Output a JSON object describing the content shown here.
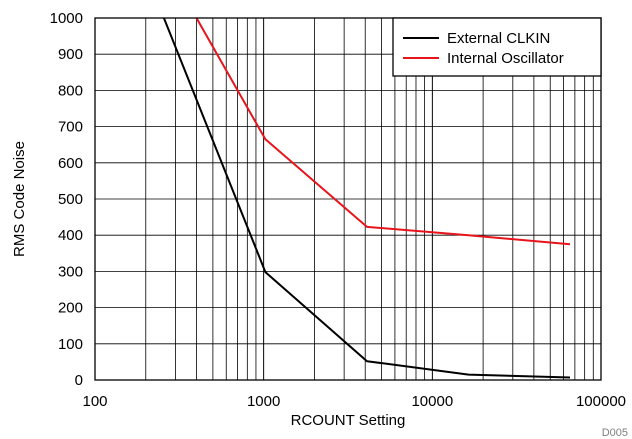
{
  "chart_data": {
    "type": "line",
    "xlabel": "RCOUNT Setting",
    "ylabel": "RMS Code Noise",
    "xscale": "log",
    "xlim": [
      100,
      100000
    ],
    "ylim": [
      0,
      1000
    ],
    "x_ticks": [
      100,
      1000,
      10000,
      100000
    ],
    "x_tick_labels": [
      "100",
      "1000",
      "10000",
      "100000"
    ],
    "y_ticks": [
      0,
      100,
      200,
      300,
      400,
      500,
      600,
      700,
      800,
      900,
      1000
    ],
    "y_tick_labels": [
      "0",
      "100",
      "200",
      "300",
      "400",
      "500",
      "600",
      "700",
      "800",
      "900",
      "1000"
    ],
    "grid": true,
    "legend_position": "top-right",
    "figure_code": "D005",
    "series": [
      {
        "name": "External CLKIN",
        "color": "#000000",
        "x": [
          256,
          1024,
          4096,
          16384,
          65536
        ],
        "y": [
          1000,
          298,
          52,
          15,
          7
        ]
      },
      {
        "name": "Internal Oscillator",
        "color": "#e8141b",
        "x": [
          400,
          1024,
          4096,
          16384,
          65536
        ],
        "y": [
          1000,
          665,
          423,
          400,
          375
        ]
      }
    ]
  }
}
